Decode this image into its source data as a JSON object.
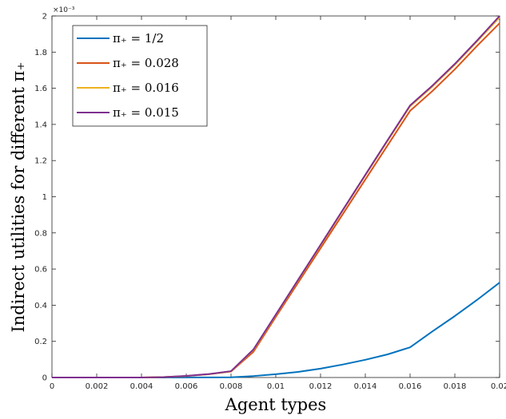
{
  "chart_data": {
    "type": "line",
    "xlabel": "Agent types",
    "ylabel": "Indirect utilities for different π₊",
    "xlim": [
      0,
      0.02
    ],
    "ylim": [
      0,
      0.002
    ],
    "x_ticks": [
      "0",
      "0.002",
      "0.004",
      "0.006",
      "0.008",
      "0.01",
      "0.012",
      "0.014",
      "0.016",
      "0.018",
      "0.02"
    ],
    "y_ticks": [
      "0",
      "0.2",
      "0.4",
      "0.6",
      "0.8",
      "1",
      "1.2",
      "1.4",
      "1.6",
      "1.8",
      "2"
    ],
    "y_exponent": "×10⁻³",
    "grid": false,
    "legend_position": "top-left",
    "series": [
      {
        "name": "π₊ = 1/2",
        "color": "#0072BD",
        "points": [
          [
            0,
            0
          ],
          [
            0.005,
            0
          ],
          [
            0.008,
            1e-06
          ],
          [
            0.009,
            8e-06
          ],
          [
            0.01,
            1.8e-05
          ],
          [
            0.011,
            3.1e-05
          ],
          [
            0.012,
            4.9e-05
          ],
          [
            0.013,
            7.2e-05
          ],
          [
            0.014,
            9.8e-05
          ],
          [
            0.015,
            0.000128
          ],
          [
            0.016,
            0.000167
          ],
          [
            0.017,
            0.000255
          ],
          [
            0.018,
            0.00034
          ],
          [
            0.019,
            0.00043
          ],
          [
            0.02,
            0.000525
          ]
        ]
      },
      {
        "name": "π₊ = 0.028",
        "color": "#D95319",
        "points": [
          [
            0,
            0
          ],
          [
            0.004,
            0
          ],
          [
            0.005,
            2e-06
          ],
          [
            0.006,
            8e-06
          ],
          [
            0.007,
            1.8e-05
          ],
          [
            0.008,
            3.3e-05
          ],
          [
            0.009,
            0.000142
          ],
          [
            0.01,
            0.000335
          ],
          [
            0.011,
            0.000525
          ],
          [
            0.012,
            0.000715
          ],
          [
            0.013,
            0.000905
          ],
          [
            0.014,
            0.001095
          ],
          [
            0.015,
            0.001285
          ],
          [
            0.016,
            0.001475
          ],
          [
            0.017,
            0.001585
          ],
          [
            0.018,
            0.001705
          ],
          [
            0.019,
            0.001835
          ],
          [
            0.02,
            0.00196
          ]
        ]
      },
      {
        "name": "π₊ = 0.016",
        "color": "#EDB120",
        "points": [
          [
            0,
            0
          ],
          [
            0.004,
            0
          ],
          [
            0.005,
            2e-06
          ],
          [
            0.006,
            8e-06
          ],
          [
            0.007,
            1.8e-05
          ],
          [
            0.008,
            3.4e-05
          ],
          [
            0.009,
            0.000152
          ],
          [
            0.01,
            0.000345
          ],
          [
            0.011,
            0.000538
          ],
          [
            0.012,
            0.00073
          ],
          [
            0.013,
            0.000925
          ],
          [
            0.014,
            0.001118
          ],
          [
            0.015,
            0.00131
          ],
          [
            0.016,
            0.0015
          ],
          [
            0.017,
            0.00161
          ],
          [
            0.018,
            0.00173
          ],
          [
            0.019,
            0.00186
          ],
          [
            0.02,
            0.001992
          ]
        ]
      },
      {
        "name": "π₊ = 0.015",
        "color": "#7E2F8E",
        "points": [
          [
            0,
            0
          ],
          [
            0.004,
            0
          ],
          [
            0.005,
            2e-06
          ],
          [
            0.006,
            9e-06
          ],
          [
            0.007,
            1.9e-05
          ],
          [
            0.008,
            3.5e-05
          ],
          [
            0.009,
            0.000155
          ],
          [
            0.01,
            0.000348
          ],
          [
            0.011,
            0.000541
          ],
          [
            0.012,
            0.000734
          ],
          [
            0.013,
            0.000928
          ],
          [
            0.014,
            0.001121
          ],
          [
            0.015,
            0.001314
          ],
          [
            0.016,
            0.001505
          ],
          [
            0.017,
            0.001615
          ],
          [
            0.018,
            0.001735
          ],
          [
            0.019,
            0.001865
          ],
          [
            0.02,
            0.002
          ]
        ]
      }
    ]
  }
}
